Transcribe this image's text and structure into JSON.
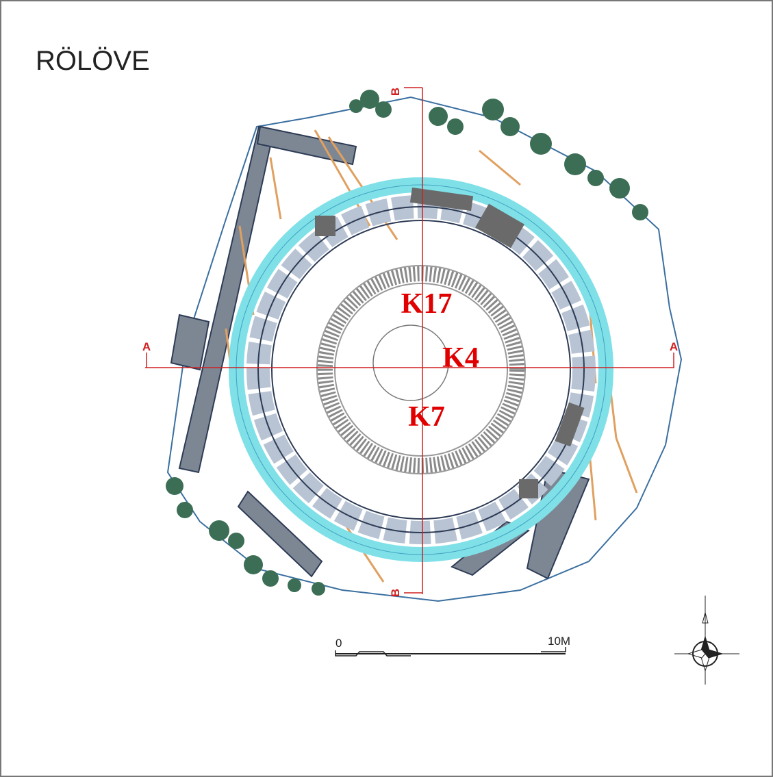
{
  "title": "RÖLÖVE",
  "room_labels": [
    "K17",
    "K4",
    "K7"
  ],
  "section_markers": {
    "a_left": "A",
    "a_right": "A",
    "b_top": "B",
    "b_bottom": "B"
  },
  "scale_bar": {
    "start": "0",
    "end": "10M"
  }
}
